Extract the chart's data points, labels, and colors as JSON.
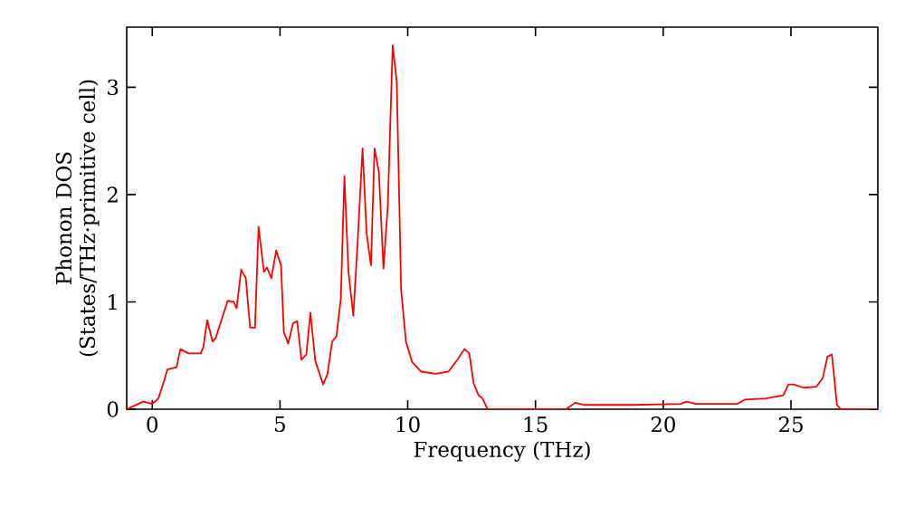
{
  "chart_data": {
    "type": "line",
    "xlabel": "Frequency (THz)",
    "ylabel": "Phonon DOS (States/THz·primitive cell)",
    "xlim": [
      -1,
      28.4
    ],
    "ylim": [
      0,
      3.56
    ],
    "xticks": [
      0,
      5,
      10,
      15,
      20,
      25
    ],
    "yticks": [
      0,
      1,
      2,
      3
    ],
    "grid": false,
    "marker": "none",
    "line_style": "solid",
    "series": [
      {
        "color": "#ff0000",
        "x": [
          -1,
          -0.35,
          0,
          0.24,
          0.47,
          0.59,
          0.95,
          1.1,
          1.42,
          1.9,
          2.0,
          2.15,
          2.36,
          2.48,
          2.95,
          3.19,
          3.3,
          3.48,
          3.66,
          3.83,
          4.02,
          4.16,
          4.37,
          4.49,
          4.66,
          4.85,
          5.04,
          5.15,
          5.32,
          5.51,
          5.67,
          5.84,
          6.03,
          6.19,
          6.38,
          6.69,
          6.86,
          7.04,
          7.21,
          7.38,
          7.52,
          7.68,
          7.87,
          8.04,
          8.23,
          8.39,
          8.56,
          8.7,
          8.87,
          9.05,
          9.22,
          9.41,
          9.57,
          9.74,
          9.93,
          10.17,
          10.52,
          11.1,
          11.59,
          11.94,
          12.22,
          12.41,
          12.58,
          12.77,
          12.93,
          13.12,
          16.2,
          16.55,
          16.9,
          18.8,
          20.7,
          20.9,
          21.3,
          22.9,
          23.2,
          24.0,
          24.7,
          24.9,
          25.1,
          25.5,
          26.0,
          26.24,
          26.43,
          26.6,
          26.8,
          26.95,
          28.4
        ],
        "values": [
          0,
          0.07,
          0.05,
          0.1,
          0.27,
          0.37,
          0.39,
          0.56,
          0.52,
          0.52,
          0.58,
          0.83,
          0.63,
          0.66,
          1.01,
          1.0,
          0.94,
          1.3,
          1.22,
          0.76,
          0.76,
          1.7,
          1.28,
          1.32,
          1.22,
          1.48,
          1.34,
          0.72,
          0.61,
          0.8,
          0.82,
          0.46,
          0.51,
          0.9,
          0.45,
          0.23,
          0.33,
          0.63,
          0.68,
          1.03,
          2.17,
          1.28,
          0.87,
          1.56,
          2.43,
          1.64,
          1.34,
          2.43,
          2.21,
          1.31,
          1.9,
          3.39,
          3.05,
          1.11,
          0.63,
          0.44,
          0.35,
          0.33,
          0.35,
          0.46,
          0.56,
          0.52,
          0.24,
          0.13,
          0.1,
          0,
          0,
          0.06,
          0.04,
          0.04,
          0.05,
          0.07,
          0.05,
          0.05,
          0.09,
          0.1,
          0.13,
          0.23,
          0.23,
          0.2,
          0.21,
          0.29,
          0.49,
          0.51,
          0.04,
          0,
          0
        ]
      }
    ]
  }
}
